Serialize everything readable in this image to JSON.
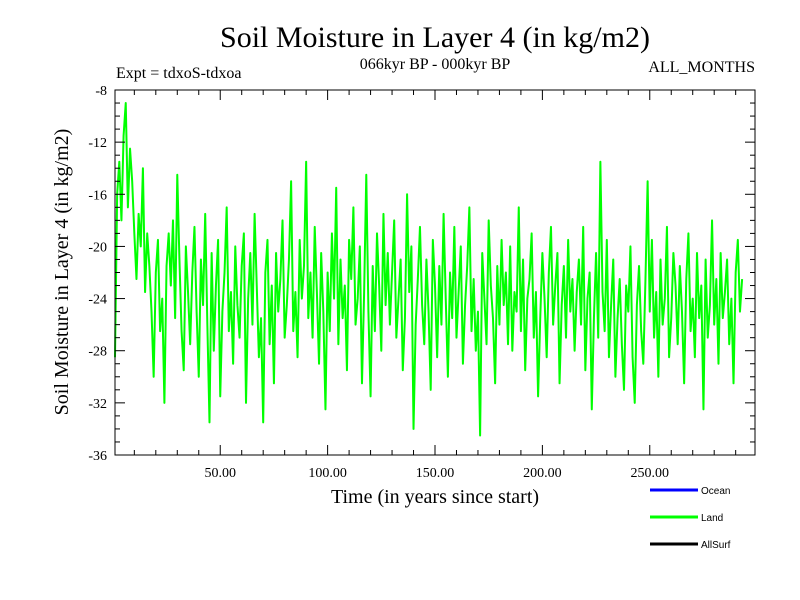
{
  "chart_data": {
    "type": "line",
    "title": "Soil Moisture in Layer 4 (in kg/m2)",
    "subtitle": "066kyr BP - 000kyr BP",
    "left_note": "Expt = tdxoS-tdxoa",
    "right_note": "ALL_MONTHS",
    "xlabel": "Time (in years since start)",
    "ylabel": "Soil Moisture in Layer 4 (in kg/m2)",
    "xlim": [
      1,
      299
    ],
    "ylim": [
      -36,
      -8
    ],
    "xticks": [
      50,
      100,
      150,
      200,
      250
    ],
    "xtick_labels": [
      "50.00",
      "100.00",
      "150.00",
      "200.00",
      "250.00"
    ],
    "yticks": [
      -8,
      -12,
      -16,
      -20,
      -24,
      -28,
      -32,
      -36
    ],
    "ytick_labels": [
      "-8",
      "-12",
      "-16",
      "-20",
      "-24",
      "-28",
      "-32",
      "-36"
    ],
    "grid": false,
    "legend_position": "bottom-right",
    "legend": [
      {
        "name": "Ocean",
        "color": "#0000ff"
      },
      {
        "name": "Land",
        "color": "#00ff00"
      },
      {
        "name": "AllSurf",
        "color": "#000000"
      }
    ],
    "series": [
      {
        "name": "Land",
        "color": "#00ff00",
        "x_start": 1,
        "x_step": 1,
        "values": [
          -28.5,
          -16.0,
          -13.5,
          -18.0,
          -11.5,
          -9.0,
          -17.0,
          -12.5,
          -15.0,
          -19.0,
          -22.5,
          -17.5,
          -20.0,
          -14.0,
          -23.5,
          -19.0,
          -21.5,
          -25.0,
          -30.0,
          -22.0,
          -19.5,
          -26.5,
          -24.0,
          -32.0,
          -21.5,
          -19.0,
          -23.0,
          -18.0,
          -25.5,
          -14.5,
          -21.0,
          -26.5,
          -29.5,
          -20.0,
          -23.5,
          -27.5,
          -22.0,
          -18.5,
          -25.0,
          -30.0,
          -21.0,
          -24.5,
          -17.5,
          -26.0,
          -33.5,
          -20.5,
          -28.0,
          -23.0,
          -19.5,
          -31.5,
          -25.0,
          -22.0,
          -17.0,
          -26.5,
          -23.5,
          -29.0,
          -20.0,
          -24.5,
          -27.0,
          -21.5,
          -19.0,
          -32.0,
          -24.0,
          -20.5,
          -26.0,
          -17.5,
          -23.0,
          -28.5,
          -25.5,
          -33.5,
          -22.0,
          -19.5,
          -27.5,
          -23.0,
          -30.5,
          -20.5,
          -25.0,
          -22.5,
          -18.0,
          -27.0,
          -24.5,
          -21.0,
          -15.0,
          -26.5,
          -23.5,
          -28.5,
          -19.5,
          -24.0,
          -21.5,
          -13.5,
          -25.5,
          -22.0,
          -27.0,
          -18.5,
          -23.5,
          -29.0,
          -20.5,
          -25.0,
          -32.5,
          -22.0,
          -26.5,
          -19.0,
          -24.0,
          -15.5,
          -27.5,
          -21.0,
          -25.5,
          -23.0,
          -29.5,
          -19.5,
          -22.5,
          -17.0,
          -26.0,
          -24.0,
          -20.0,
          -30.5,
          -23.5,
          -14.5,
          -25.0,
          -31.5,
          -21.5,
          -26.5,
          -19.0,
          -23.0,
          -28.0,
          -17.5,
          -24.5,
          -20.5,
          -26.0,
          -22.0,
          -18.0,
          -27.0,
          -24.0,
          -21.0,
          -29.5,
          -25.5,
          -16.0,
          -23.5,
          -20.0,
          -34.0,
          -26.0,
          -22.5,
          -18.5,
          -24.5,
          -27.5,
          -21.0,
          -25.0,
          -31.0,
          -19.5,
          -23.0,
          -28.5,
          -21.5,
          -26.0,
          -17.5,
          -24.0,
          -30.0,
          -22.0,
          -25.5,
          -18.5,
          -27.0,
          -23.5,
          -20.0,
          -29.0,
          -24.5,
          -21.5,
          -17.0,
          -26.5,
          -22.5,
          -28.0,
          -25.0,
          -34.5,
          -20.5,
          -24.0,
          -27.5,
          -18.0,
          -23.0,
          -25.5,
          -30.5,
          -21.5,
          -26.0,
          -19.5,
          -24.5,
          -22.0,
          -27.5,
          -20.0,
          -28.0,
          -23.5,
          -25.0,
          -17.0,
          -26.5,
          -21.0,
          -29.5,
          -24.0,
          -22.5,
          -19.0,
          -27.0,
          -23.5,
          -31.5,
          -25.5,
          -20.5,
          -24.0,
          -28.5,
          -22.0,
          -18.5,
          -26.0,
          -23.0,
          -20.5,
          -30.5,
          -24.5,
          -21.5,
          -27.0,
          -19.5,
          -25.0,
          -22.5,
          -28.0,
          -23.5,
          -21.0,
          -26.0,
          -18.5,
          -29.5,
          -24.0,
          -22.0,
          -32.5,
          -25.5,
          -20.5,
          -27.0,
          -13.5,
          -23.5,
          -26.5,
          -19.5,
          -28.5,
          -24.5,
          -21.0,
          -30.0,
          -25.5,
          -22.5,
          -27.5,
          -31.0,
          -23.0,
          -25.0,
          -20.0,
          -28.5,
          -32.0,
          -24.5,
          -21.5,
          -26.5,
          -29.0,
          -22.5,
          -15.0,
          -25.0,
          -19.5,
          -27.0,
          -23.5,
          -30.0,
          -21.0,
          -26.0,
          -24.0,
          -18.5,
          -28.5,
          -25.5,
          -20.5,
          -23.0,
          -27.5,
          -21.5,
          -25.0,
          -30.5,
          -22.5,
          -19.0,
          -26.5,
          -24.0,
          -28.5,
          -20.5,
          -25.5,
          -23.0,
          -32.5,
          -21.0,
          -27.0,
          -24.5,
          -18.0,
          -26.0,
          -22.5,
          -29.0,
          -20.5,
          -25.5,
          -23.5,
          -21.0,
          -27.5,
          -24.0,
          -30.5,
          -22.0,
          -19.5,
          -25.0,
          -22.5
        ]
      }
    ]
  }
}
